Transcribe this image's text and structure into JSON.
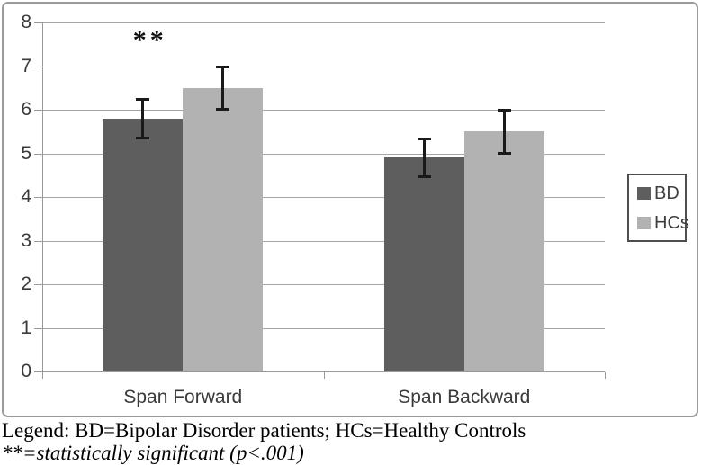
{
  "chart_data": {
    "type": "bar",
    "title": "",
    "xlabel": "",
    "ylabel": "",
    "categories": [
      "Span Forward",
      "Span Backward"
    ],
    "series": [
      {
        "name": "BD",
        "color": "#5e5e5e",
        "values": [
          5.8,
          4.9
        ],
        "errors": [
          0.45,
          0.45
        ]
      },
      {
        "name": "HCs",
        "color": "#b2b2b2",
        "values": [
          6.5,
          5.5
        ],
        "errors": [
          0.5,
          0.5
        ]
      }
    ],
    "ylim": [
      0,
      8
    ],
    "yticks": [
      0,
      1,
      2,
      3,
      4,
      5,
      6,
      7,
      8
    ],
    "grid": true,
    "legend_position": "right",
    "annotations": [
      {
        "text": "**",
        "category_index": 0,
        "series_index": 0,
        "meaning": "statistically significant"
      }
    ]
  },
  "caption": {
    "line1": "Legend: BD=Bipolar Disorder patients; HCs=Healthy Controls",
    "line2": "**=statistically significant (p<.001)"
  },
  "colors": {
    "bar_dark": "#5e5e5e",
    "bar_light": "#b2b2b2",
    "gridline": "#a6a6a6",
    "axis": "#999999",
    "figure_border": "#9a9a9a",
    "error_bar": "#1a1a1a",
    "label_text": "#3a3a3a"
  }
}
